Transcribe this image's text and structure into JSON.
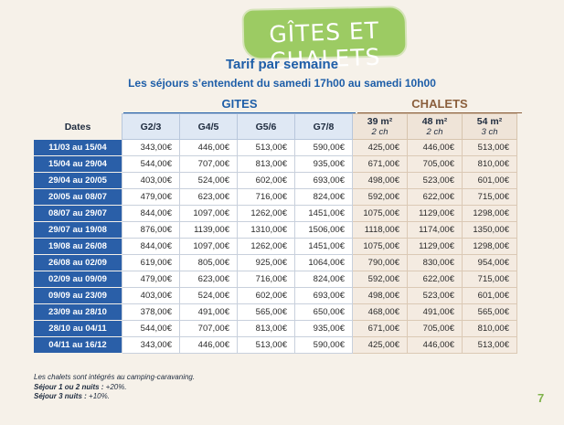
{
  "banner": {
    "title": "GÎTES ET CHALETS"
  },
  "header": {
    "title": "Tarif par semaine",
    "subtitle": "Les séjours s’entendent du samedi 17h00 au samedi 10h00"
  },
  "groups": {
    "gites": "GITES",
    "chalets": "CHALETS"
  },
  "columns": {
    "dates": "Dates",
    "gites": [
      "G2/3",
      "G4/5",
      "G5/6",
      "G7/8"
    ],
    "chalets": [
      {
        "area": "39 m²",
        "rooms": "2 ch"
      },
      {
        "area": "48 m²",
        "rooms": "2 ch"
      },
      {
        "area": "54 m²",
        "rooms": "3 ch"
      }
    ]
  },
  "rows": [
    {
      "dates": "11/03 au 15/04",
      "gites": [
        "343,00€",
        "446,00€",
        "513,00€",
        "590,00€"
      ],
      "chalets": [
        "425,00€",
        "446,00€",
        "513,00€"
      ]
    },
    {
      "dates": "15/04 au 29/04",
      "gites": [
        "544,00€",
        "707,00€",
        "813,00€",
        "935,00€"
      ],
      "chalets": [
        "671,00€",
        "705,00€",
        "810,00€"
      ]
    },
    {
      "dates": "29/04 au 20/05",
      "gites": [
        "403,00€",
        "524,00€",
        "602,00€",
        "693,00€"
      ],
      "chalets": [
        "498,00€",
        "523,00€",
        "601,00€"
      ]
    },
    {
      "dates": "20/05 au 08/07",
      "gites": [
        "479,00€",
        "623,00€",
        "716,00€",
        "824,00€"
      ],
      "chalets": [
        "592,00€",
        "622,00€",
        "715,00€"
      ]
    },
    {
      "dates": "08/07 au 29/07",
      "gites": [
        "844,00€",
        "1097,00€",
        "1262,00€",
        "1451,00€"
      ],
      "chalets": [
        "1075,00€",
        "1129,00€",
        "1298,00€"
      ]
    },
    {
      "dates": "29/07 au 19/08",
      "gites": [
        "876,00€",
        "1139,00€",
        "1310,00€",
        "1506,00€"
      ],
      "chalets": [
        "1118,00€",
        "1174,00€",
        "1350,00€"
      ]
    },
    {
      "dates": "19/08 au 26/08",
      "gites": [
        "844,00€",
        "1097,00€",
        "1262,00€",
        "1451,00€"
      ],
      "chalets": [
        "1075,00€",
        "1129,00€",
        "1298,00€"
      ]
    },
    {
      "dates": "26/08 au 02/09",
      "gites": [
        "619,00€",
        "805,00€",
        "925,00€",
        "1064,00€"
      ],
      "chalets": [
        "790,00€",
        "830,00€",
        "954,00€"
      ]
    },
    {
      "dates": "02/09 au 09/09",
      "gites": [
        "479,00€",
        "623,00€",
        "716,00€",
        "824,00€"
      ],
      "chalets": [
        "592,00€",
        "622,00€",
        "715,00€"
      ]
    },
    {
      "dates": "09/09 au 23/09",
      "gites": [
        "403,00€",
        "524,00€",
        "602,00€",
        "693,00€"
      ],
      "chalets": [
        "498,00€",
        "523,00€",
        "601,00€"
      ]
    },
    {
      "dates": "23/09 au 28/10",
      "gites": [
        "378,00€",
        "491,00€",
        "565,00€",
        "650,00€"
      ],
      "chalets": [
        "468,00€",
        "491,00€",
        "565,00€"
      ]
    },
    {
      "dates": "28/10 au 04/11",
      "gites": [
        "544,00€",
        "707,00€",
        "813,00€",
        "935,00€"
      ],
      "chalets": [
        "671,00€",
        "705,00€",
        "810,00€"
      ]
    },
    {
      "dates": "04/11 au 16/12",
      "gites": [
        "343,00€",
        "446,00€",
        "513,00€",
        "590,00€"
      ],
      "chalets": [
        "425,00€",
        "446,00€",
        "513,00€"
      ]
    }
  ],
  "notes": {
    "line1": "Les chalets sont intégrés au camping-caravaning.",
    "line2_label": "Séjour 1 ou 2 nuits :",
    "line2_value": " +20%.",
    "line3_label": "Séjour 3 nuits :",
    "line3_value": " +10%."
  },
  "page_number": "7"
}
